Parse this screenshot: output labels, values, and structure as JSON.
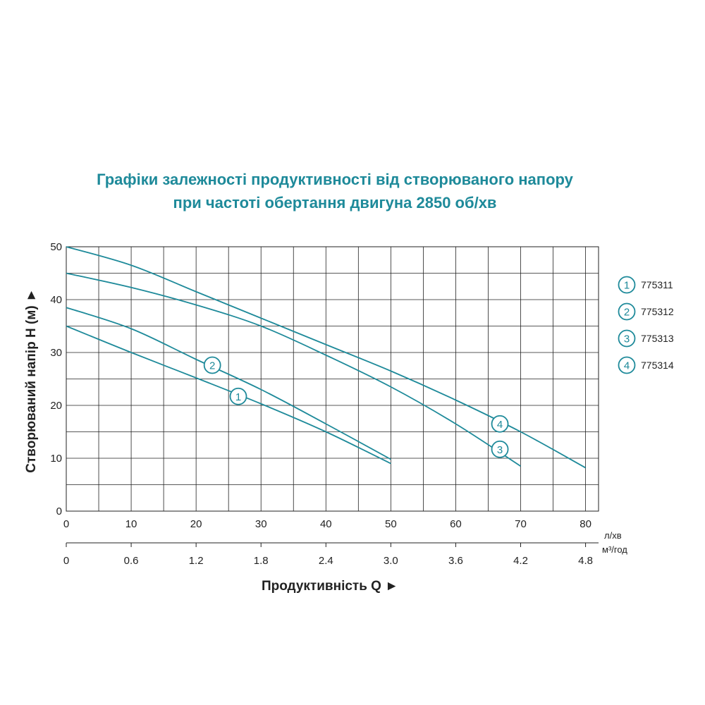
{
  "title": {
    "line1": "Графіки залежності продуктивності від створюваного напору",
    "line2": "при частоті обертання двигуна 2850 об/хв"
  },
  "colors": {
    "curve": "#1e8a9a",
    "title": "#1e8a9a",
    "grid": "#222222"
  },
  "chart_data": {
    "type": "line",
    "title": "Графіки залежності продуктивності від створюваного напору при частоті обертання двигуна 2850 об/хв",
    "ylabel": "Створюваний напір H (м) ►",
    "xlabel": "Продуктивність  Q ►",
    "xlim": [
      0,
      82
    ],
    "ylim": [
      0,
      50
    ],
    "x_ticks": [
      "0",
      "10",
      "20",
      "30",
      "40",
      "50",
      "60",
      "70",
      "80"
    ],
    "x_tick_values": [
      0,
      10,
      20,
      30,
      40,
      50,
      60,
      70,
      80
    ],
    "x_unit": "л/хв",
    "x2_ticks": [
      "0",
      "0.6",
      "1.2",
      "1.8",
      "2.4",
      "3.0",
      "3.6",
      "4.2",
      "4.8"
    ],
    "x2_unit": "м³/год",
    "y_ticks": [
      "0",
      "10",
      "20",
      "30",
      "40",
      "50"
    ],
    "y_tick_values": [
      0,
      10,
      20,
      30,
      40,
      50
    ],
    "grid": true,
    "legend_position": "right",
    "series": [
      {
        "name": "775311",
        "label": "1",
        "x": [
          0,
          10,
          20,
          30,
          40,
          50
        ],
        "y": [
          35,
          30,
          25.2,
          20.3,
          15,
          9
        ],
        "marker_at": [
          26.5,
          21.7
        ]
      },
      {
        "name": "775312",
        "label": "2",
        "x": [
          0,
          10,
          20,
          30,
          40,
          50
        ],
        "y": [
          38.5,
          34.5,
          28.7,
          23,
          16.5,
          9.8
        ],
        "marker_at": [
          22.5,
          27.6
        ]
      },
      {
        "name": "775313",
        "label": "3",
        "x": [
          0,
          10,
          20,
          30,
          40,
          50,
          60,
          70
        ],
        "y": [
          45,
          42.3,
          39,
          35,
          29.5,
          23.5,
          16.5,
          8.5
        ],
        "marker_at": [
          66.8,
          11.7
        ]
      },
      {
        "name": "775314",
        "label": "4",
        "x": [
          0,
          10,
          20,
          30,
          40,
          50,
          60,
          70,
          80
        ],
        "y": [
          50,
          46.5,
          41.5,
          36.5,
          31.5,
          26.5,
          21,
          15,
          8.2
        ],
        "marker_at": [
          66.8,
          16.5
        ]
      }
    ]
  }
}
